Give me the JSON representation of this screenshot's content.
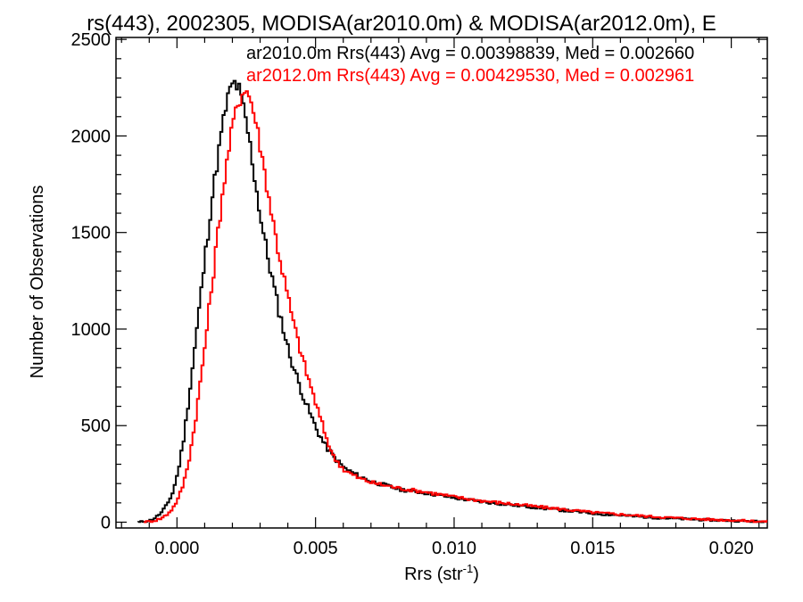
{
  "chart_data": {
    "type": "line",
    "title": "rs(443), 2002305, MODISA(ar2010.0m) & MODISA(ar2012.0m), E",
    "xlabel_main": "Rrs (str",
    "xlabel_sup": "-1",
    "xlabel_close": ")",
    "ylabel": "Number of Observations",
    "xlim": [
      -0.0022,
      0.0213
    ],
    "ylim": [
      -30,
      2510
    ],
    "x_ticks": [
      0.0,
      0.005,
      0.01,
      0.015,
      0.02
    ],
    "x_tick_labels": [
      "0.000",
      "0.005",
      "0.010",
      "0.015",
      "0.020"
    ],
    "y_ticks": [
      0,
      500,
      1000,
      1500,
      2000,
      2500
    ],
    "y_tick_labels": [
      "0",
      "500",
      "1000",
      "1500",
      "2000",
      "2500"
    ],
    "grid": false,
    "legend_position": "top-right",
    "series": [
      {
        "name": "ar2010.0m",
        "legend_text": "ar2010.0m Rrs(443) Avg = 0.00398839, Med = 0.002660",
        "color": "#000000",
        "points": [
          [
            -0.0014,
            0
          ],
          [
            -0.001,
            10
          ],
          [
            -0.0008,
            25
          ],
          [
            -0.0006,
            50
          ],
          [
            -0.0004,
            90
          ],
          [
            -0.0002,
            150
          ],
          [
            0.0,
            260
          ],
          [
            0.0002,
            430
          ],
          [
            0.0004,
            650
          ],
          [
            0.0006,
            900
          ],
          [
            0.0008,
            1150
          ],
          [
            0.001,
            1400
          ],
          [
            0.0012,
            1650
          ],
          [
            0.0014,
            1850
          ],
          [
            0.0016,
            2050
          ],
          [
            0.0018,
            2200
          ],
          [
            0.002,
            2280
          ],
          [
            0.0022,
            2240
          ],
          [
            0.0024,
            2120
          ],
          [
            0.0026,
            1950
          ],
          [
            0.0028,
            1750
          ],
          [
            0.003,
            1560
          ],
          [
            0.0032,
            1400
          ],
          [
            0.0034,
            1260
          ],
          [
            0.0036,
            1120
          ],
          [
            0.0038,
            1000
          ],
          [
            0.004,
            880
          ],
          [
            0.0042,
            790
          ],
          [
            0.0044,
            700
          ],
          [
            0.0046,
            620
          ],
          [
            0.0048,
            550
          ],
          [
            0.005,
            480
          ],
          [
            0.0053,
            400
          ],
          [
            0.0056,
            340
          ],
          [
            0.006,
            280
          ],
          [
            0.0065,
            240
          ],
          [
            0.007,
            210
          ],
          [
            0.0075,
            190
          ],
          [
            0.008,
            170
          ],
          [
            0.0085,
            160
          ],
          [
            0.009,
            150
          ],
          [
            0.01,
            125
          ],
          [
            0.011,
            105
          ],
          [
            0.012,
            90
          ],
          [
            0.013,
            75
          ],
          [
            0.014,
            60
          ],
          [
            0.015,
            45
          ],
          [
            0.016,
            35
          ],
          [
            0.017,
            25
          ],
          [
            0.018,
            18
          ],
          [
            0.019,
            12
          ],
          [
            0.02,
            8
          ],
          [
            0.021,
            3
          ],
          [
            0.0213,
            2
          ]
        ]
      },
      {
        "name": "ar2012.0m",
        "legend_text": "ar2012.0m Rrs(443) Avg = 0.00429530, Med = 0.002961",
        "color": "#ff0000",
        "points": [
          [
            -0.0012,
            0
          ],
          [
            -0.0008,
            10
          ],
          [
            -0.0006,
            20
          ],
          [
            -0.0004,
            40
          ],
          [
            -0.0002,
            70
          ],
          [
            0.0,
            120
          ],
          [
            0.0002,
            200
          ],
          [
            0.0004,
            330
          ],
          [
            0.0006,
            500
          ],
          [
            0.0008,
            720
          ],
          [
            0.001,
            950
          ],
          [
            0.0012,
            1200
          ],
          [
            0.0014,
            1450
          ],
          [
            0.0016,
            1700
          ],
          [
            0.0018,
            1900
          ],
          [
            0.002,
            2080
          ],
          [
            0.0022,
            2180
          ],
          [
            0.0024,
            2250
          ],
          [
            0.0026,
            2200
          ],
          [
            0.0028,
            2080
          ],
          [
            0.003,
            1920
          ],
          [
            0.0032,
            1750
          ],
          [
            0.0034,
            1580
          ],
          [
            0.0036,
            1420
          ],
          [
            0.0038,
            1280
          ],
          [
            0.004,
            1140
          ],
          [
            0.0042,
            1010
          ],
          [
            0.0044,
            900
          ],
          [
            0.0046,
            790
          ],
          [
            0.0048,
            700
          ],
          [
            0.005,
            600
          ],
          [
            0.0053,
            460
          ],
          [
            0.0056,
            340
          ],
          [
            0.006,
            270
          ],
          [
            0.0065,
            230
          ],
          [
            0.007,
            205
          ],
          [
            0.0075,
            190
          ],
          [
            0.008,
            175
          ],
          [
            0.0085,
            165
          ],
          [
            0.009,
            155
          ],
          [
            0.01,
            130
          ],
          [
            0.011,
            110
          ],
          [
            0.012,
            95
          ],
          [
            0.013,
            80
          ],
          [
            0.014,
            65
          ],
          [
            0.015,
            50
          ],
          [
            0.016,
            40
          ],
          [
            0.017,
            30
          ],
          [
            0.018,
            22
          ],
          [
            0.019,
            15
          ],
          [
            0.02,
            10
          ],
          [
            0.021,
            4
          ],
          [
            0.0213,
            3
          ]
        ]
      }
    ]
  }
}
